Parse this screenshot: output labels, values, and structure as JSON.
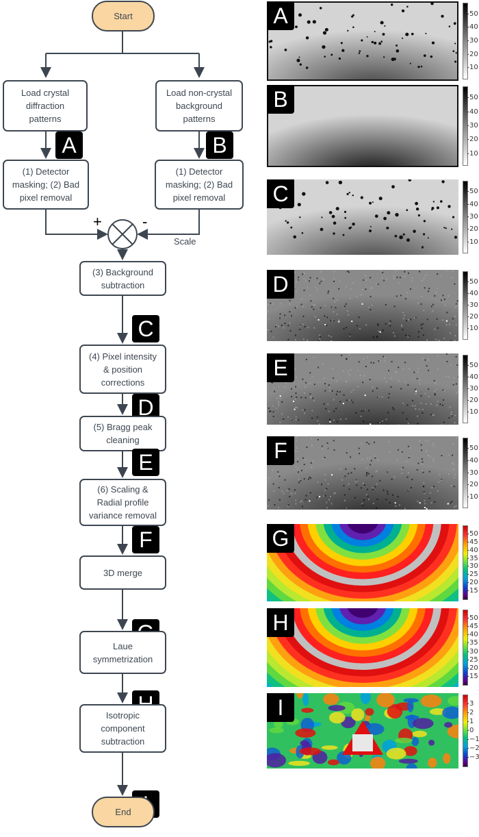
{
  "flowchart": {
    "start": "Start",
    "end": "End",
    "load_crystal": "Load crystal\ndiffraction\npatterns",
    "load_background": "Load non-crystal\nbackground\npatterns",
    "mask_left": "(1) Detector\nmasking; (2) Bad\npixel removal",
    "mask_right": "(1) Detector\nmasking; (2) Bad\npixel removal",
    "plus": "+",
    "minus": "-",
    "scale": "Scale",
    "step3": "(3) Background\nsubtraction",
    "step4": "(4) Pixel intensity\n& position\ncorrections",
    "step5": "(5) Bragg peak\ncleaning",
    "step6": "(6) Scaling &\nRadial profile\nvariance removal",
    "merge": "3D merge",
    "laue": "Laue\nsymmetrization",
    "isotropic": "Isotropic\ncomponent\nsubtraction",
    "badges": {
      "A": "A",
      "B": "B",
      "C": "C",
      "D": "D",
      "E": "E",
      "F": "F",
      "G": "G",
      "H": "H",
      "I": "I"
    }
  },
  "panels": [
    {
      "label": "A",
      "colormap": "gray",
      "style": "spots",
      "ticks": [
        "50",
        "40",
        "30",
        "20",
        "10"
      ]
    },
    {
      "label": "B",
      "colormap": "gray",
      "style": "background",
      "ticks": [
        "50",
        "40",
        "30",
        "20",
        "10"
      ]
    },
    {
      "label": "C",
      "colormap": "gray",
      "style": "spots",
      "ticks": [
        "50",
        "40",
        "30",
        "20",
        "10"
      ]
    },
    {
      "label": "D",
      "colormap": "gray",
      "style": "noisy",
      "ticks": [
        "50",
        "40",
        "30",
        "20",
        "10"
      ]
    },
    {
      "label": "E",
      "colormap": "gray",
      "style": "noisy",
      "ticks": [
        "50",
        "40",
        "30",
        "20",
        "10"
      ]
    },
    {
      "label": "F",
      "colormap": "gray",
      "style": "noisy",
      "ticks": [
        "50",
        "40",
        "30",
        "20",
        "10"
      ]
    },
    {
      "label": "G",
      "colormap": "jet",
      "style": "rings",
      "ticks": [
        "50",
        "45",
        "40",
        "35",
        "30",
        "25",
        "20",
        "15"
      ]
    },
    {
      "label": "H",
      "colormap": "jet",
      "style": "rings",
      "ticks": [
        "50",
        "45",
        "40",
        "35",
        "30",
        "25",
        "20",
        "15"
      ]
    },
    {
      "label": "I",
      "colormap": "jet",
      "style": "anisotropic",
      "ticks": [
        "3",
        "2",
        "1",
        "0",
        "−1",
        "−2",
        "−3"
      ]
    }
  ],
  "colors": {
    "node_border": "#3d4650",
    "terminal_fill": "#f9d6a2",
    "badge": "#000000"
  }
}
